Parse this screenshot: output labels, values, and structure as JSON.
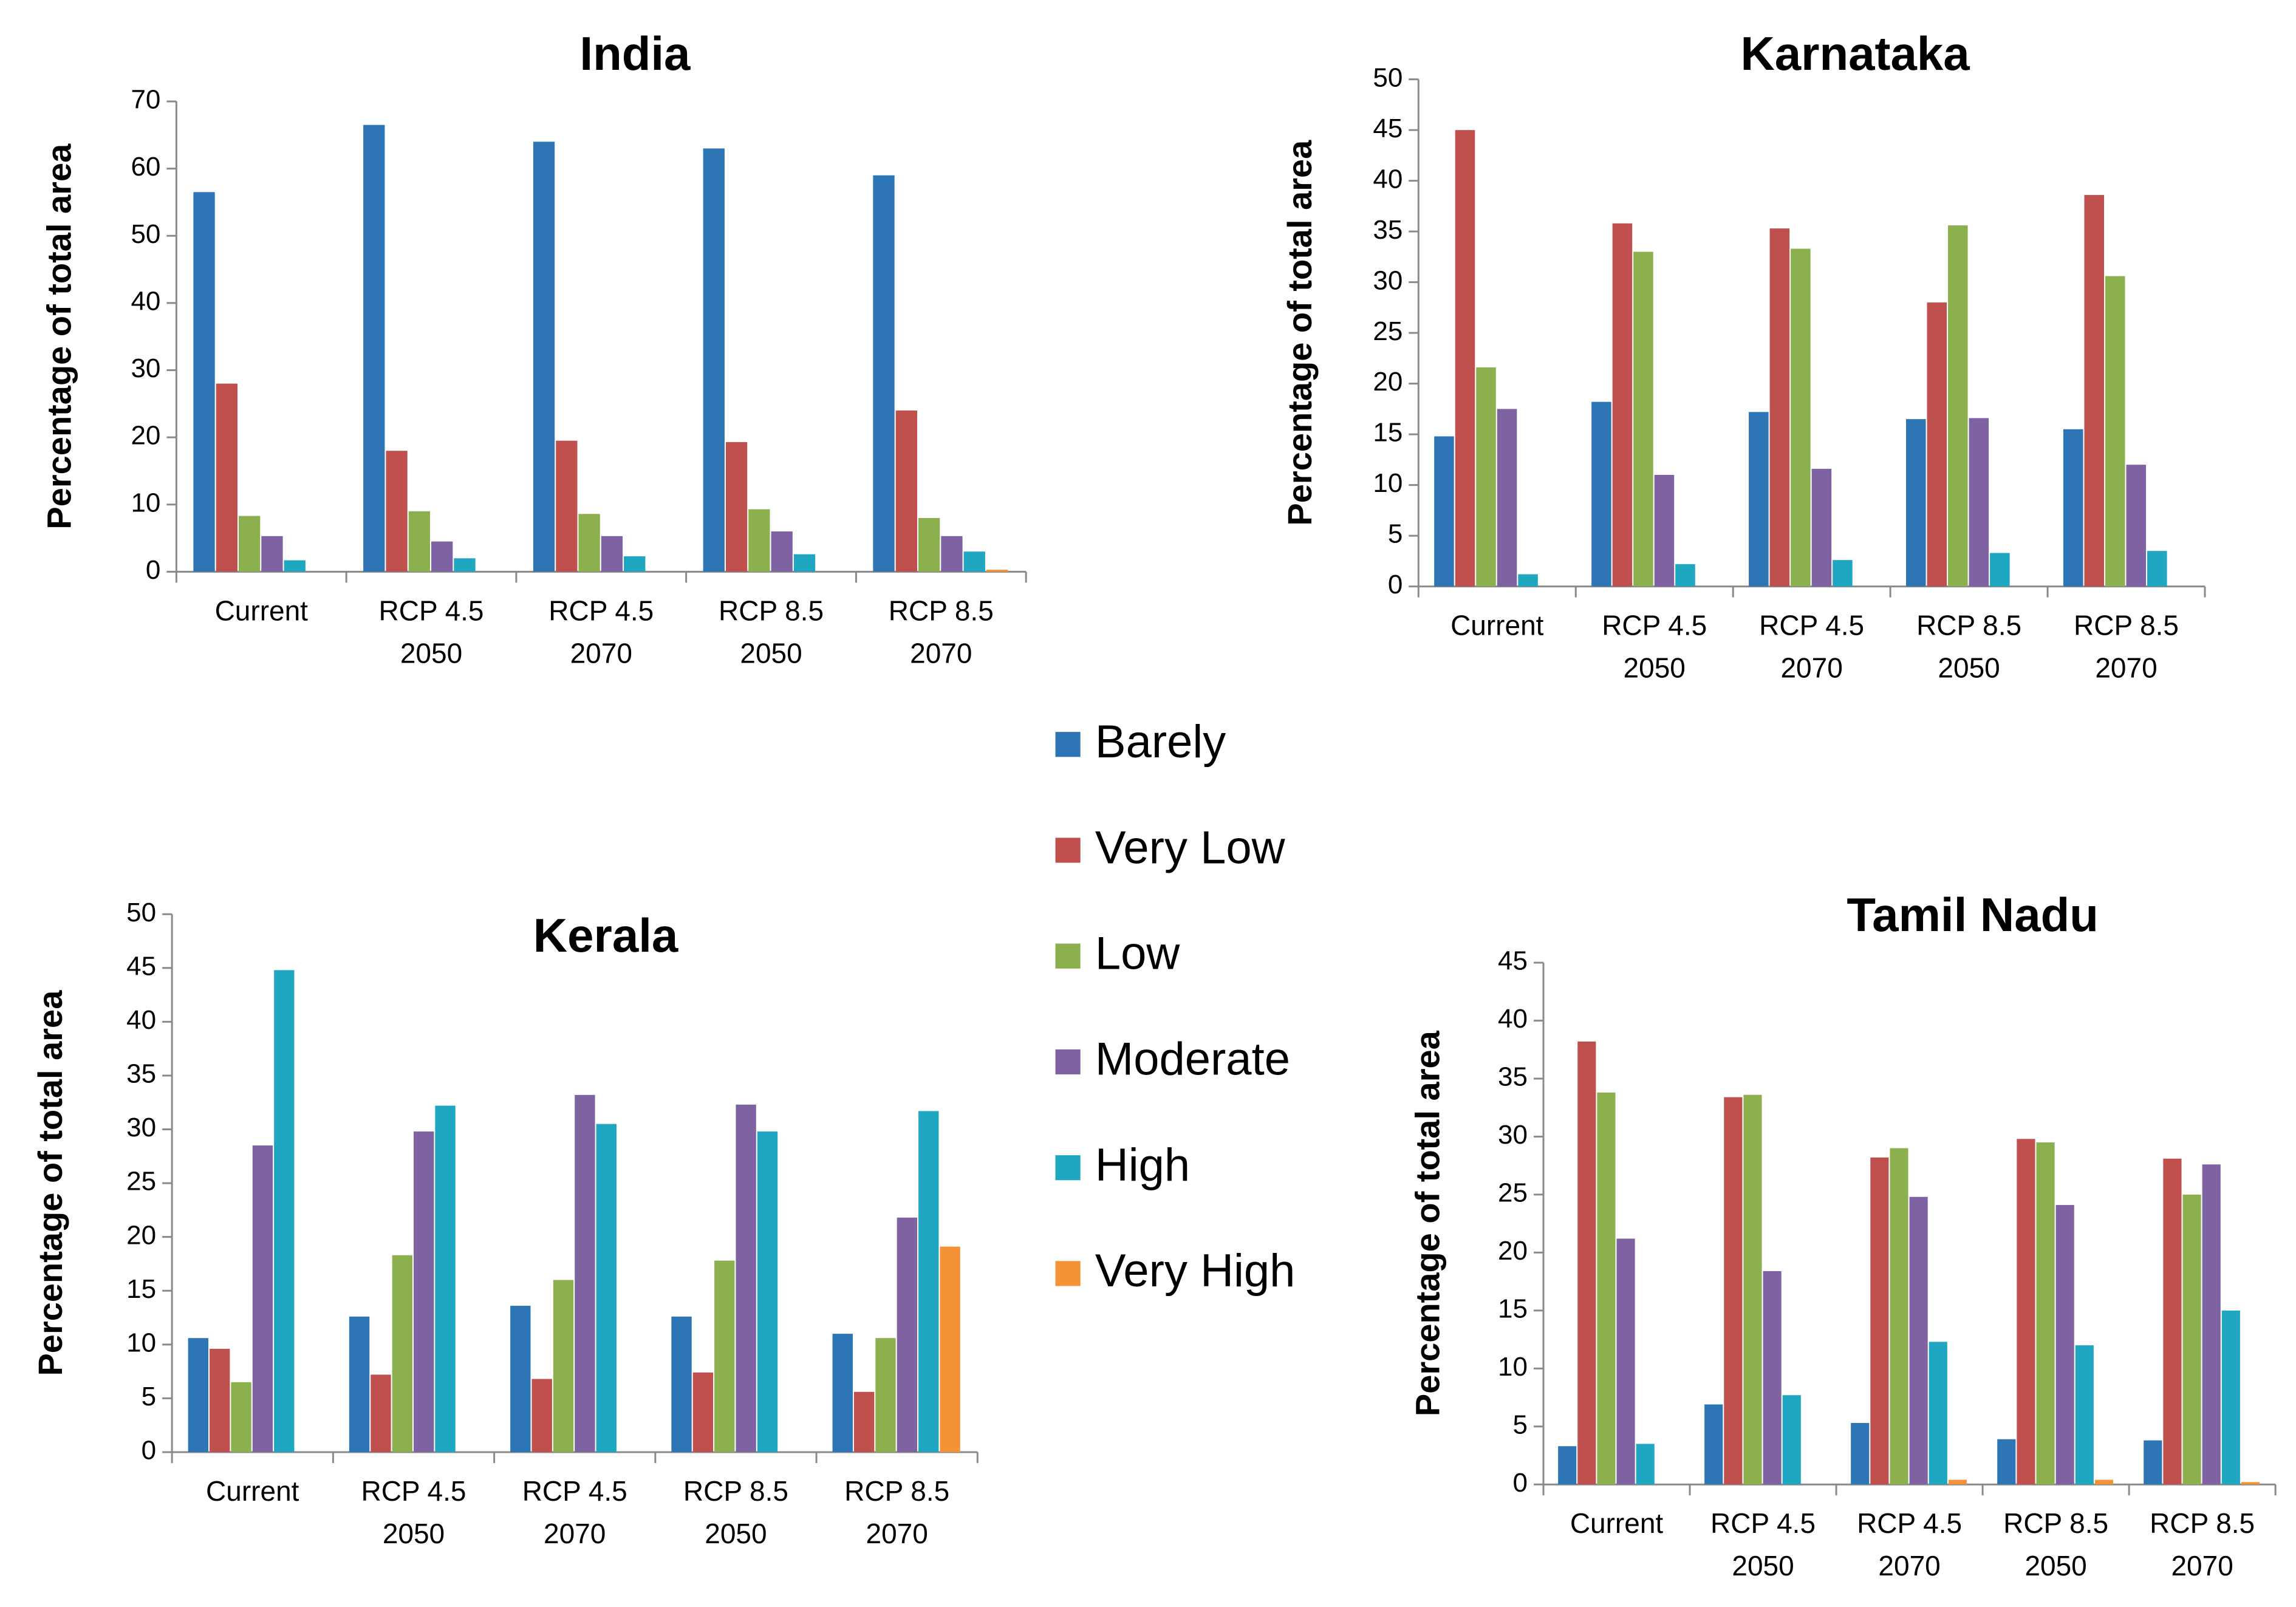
{
  "legend": [
    {
      "name": "Barely",
      "color": "#2E75B6"
    },
    {
      "name": "Very Low",
      "color": "#C0504D"
    },
    {
      "name": "Low",
      "color": "#8CB04E"
    },
    {
      "name": "Moderate",
      "color": "#7E62A1"
    },
    {
      "name": "High",
      "color": "#1FA6C0"
    },
    {
      "name": "Very High",
      "color": "#F59236"
    }
  ],
  "chart_data": [
    {
      "type": "bar",
      "title": "India",
      "ylabel": "Percentage of total area",
      "xlabel": "",
      "ylim": [
        0,
        70
      ],
      "yticks": [
        "0",
        "10",
        "20",
        "30",
        "40",
        "50",
        "60",
        "70"
      ],
      "categories": [
        [
          "Current"
        ],
        [
          "RCP 4.5",
          "2050"
        ],
        [
          "RCP 4.5",
          "2070"
        ],
        [
          "RCP 8.5",
          "2050"
        ],
        [
          "RCP 8.5",
          "2070"
        ]
      ],
      "series": [
        {
          "name": "Barely",
          "values": [
            56.5,
            66.5,
            64,
            63,
            59
          ]
        },
        {
          "name": "Very Low",
          "values": [
            28,
            18,
            19.5,
            19.3,
            24
          ]
        },
        {
          "name": "Low",
          "values": [
            8.3,
            9,
            8.6,
            9.3,
            8
          ]
        },
        {
          "name": "Moderate",
          "values": [
            5.3,
            4.5,
            5.3,
            6,
            5.3
          ]
        },
        {
          "name": "High",
          "values": [
            1.7,
            2,
            2.3,
            2.6,
            3
          ]
        },
        {
          "name": "Very High",
          "values": [
            0,
            0,
            0,
            0,
            0.3
          ]
        }
      ]
    },
    {
      "type": "bar",
      "title": "Karnataka",
      "ylabel": "Percentage of total area",
      "xlabel": "",
      "ylim": [
        0,
        50
      ],
      "yticks": [
        "0",
        "5",
        "10",
        "15",
        "20",
        "25",
        "30",
        "35",
        "40",
        "45",
        "50"
      ],
      "categories": [
        [
          "Current"
        ],
        [
          "RCP 4.5",
          "2050"
        ],
        [
          "RCP 4.5",
          "2070"
        ],
        [
          "RCP 8.5",
          "2050"
        ],
        [
          "RCP 8.5",
          "2070"
        ]
      ],
      "series": [
        {
          "name": "Barely",
          "values": [
            14.8,
            18.2,
            17.2,
            16.5,
            15.5
          ]
        },
        {
          "name": "Very Low",
          "values": [
            45,
            35.8,
            35.3,
            28,
            38.6
          ]
        },
        {
          "name": "Low",
          "values": [
            21.6,
            33,
            33.3,
            35.6,
            30.6
          ]
        },
        {
          "name": "Moderate",
          "values": [
            17.5,
            11,
            11.6,
            16.6,
            12
          ]
        },
        {
          "name": "High",
          "values": [
            1.2,
            2.2,
            2.6,
            3.3,
            3.5
          ]
        },
        {
          "name": "Very High",
          "values": [
            0,
            0,
            0,
            0,
            0
          ]
        }
      ]
    },
    {
      "type": "bar",
      "title": "Kerala",
      "ylabel": "Percentage of total area",
      "xlabel": "",
      "ylim": [
        0,
        50
      ],
      "yticks": [
        "0",
        "5",
        "10",
        "15",
        "20",
        "25",
        "30",
        "35",
        "40",
        "45",
        "50"
      ],
      "categories": [
        [
          "Current"
        ],
        [
          "RCP 4.5",
          "2050"
        ],
        [
          "RCP 4.5",
          "2070"
        ],
        [
          "RCP 8.5",
          "2050"
        ],
        [
          "RCP 8.5",
          "2070"
        ]
      ],
      "series": [
        {
          "name": "Barely",
          "values": [
            10.6,
            12.6,
            13.6,
            12.6,
            11
          ]
        },
        {
          "name": "Very Low",
          "values": [
            9.6,
            7.2,
            6.8,
            7.4,
            5.6
          ]
        },
        {
          "name": "Low",
          "values": [
            6.5,
            18.3,
            16,
            17.8,
            10.6
          ]
        },
        {
          "name": "Moderate",
          "values": [
            28.5,
            29.8,
            33.2,
            32.3,
            21.8
          ]
        },
        {
          "name": "High",
          "values": [
            44.8,
            32.2,
            30.5,
            29.8,
            31.7
          ]
        },
        {
          "name": "Very High",
          "values": [
            0,
            0,
            0,
            0,
            19.1
          ]
        }
      ]
    },
    {
      "type": "bar",
      "title": "Tamil Nadu",
      "ylabel": "Percentage of total area",
      "xlabel": "",
      "ylim": [
        0,
        45
      ],
      "yticks": [
        "0",
        "5",
        "10",
        "15",
        "20",
        "25",
        "30",
        "35",
        "40",
        "45"
      ],
      "categories": [
        [
          "Current"
        ],
        [
          "RCP 4.5",
          "2050"
        ],
        [
          "RCP 4.5",
          "2070"
        ],
        [
          "RCP 8.5",
          "2050"
        ],
        [
          "RCP 8.5",
          "2070"
        ]
      ],
      "series": [
        {
          "name": "Barely",
          "values": [
            3.3,
            6.9,
            5.3,
            3.9,
            3.8
          ]
        },
        {
          "name": "Very Low",
          "values": [
            38.2,
            33.4,
            28.2,
            29.8,
            28.1
          ]
        },
        {
          "name": "Low",
          "values": [
            33.8,
            33.6,
            29,
            29.5,
            25
          ]
        },
        {
          "name": "Moderate",
          "values": [
            21.2,
            18.4,
            24.8,
            24.1,
            27.6
          ]
        },
        {
          "name": "High",
          "values": [
            3.5,
            7.7,
            12.3,
            12,
            15
          ]
        },
        {
          "name": "Very High",
          "values": [
            0,
            0,
            0.4,
            0.4,
            0.2
          ]
        }
      ]
    }
  ]
}
